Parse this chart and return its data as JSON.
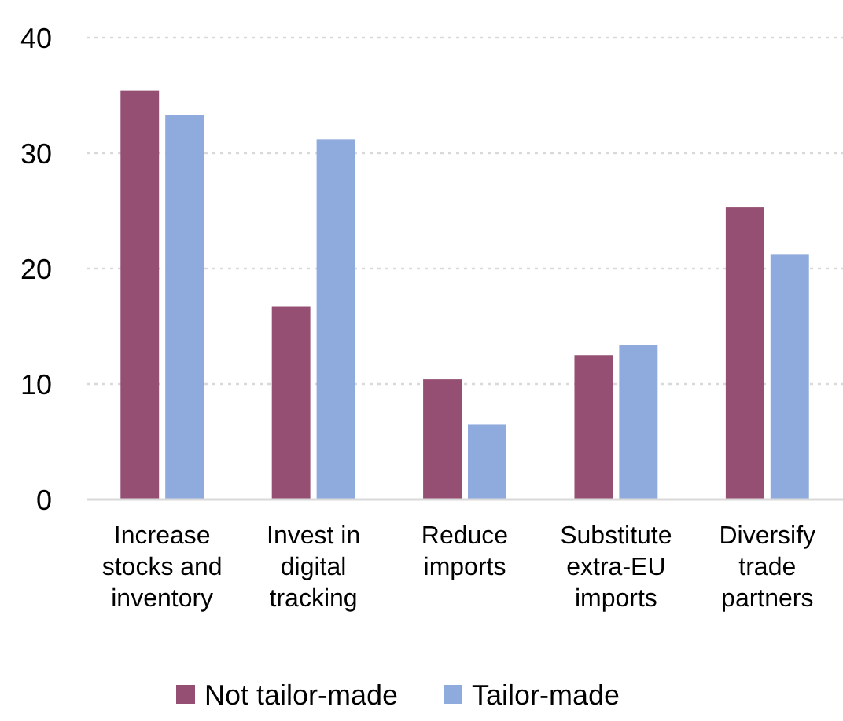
{
  "chart_data": {
    "type": "bar",
    "categories": [
      "Increase stocks and inventory",
      "Invest in digital tracking",
      "Reduce imports",
      "Substitute extra-EU imports",
      "Diversify trade partners"
    ],
    "series": [
      {
        "name": "Not tailor-made",
        "color": "#954f72",
        "values": [
          35.4,
          16.7,
          10.4,
          12.5,
          25.3
        ]
      },
      {
        "name": "Tailor-made",
        "color": "#8faadc",
        "values": [
          33.3,
          31.2,
          6.5,
          13.4,
          21.2
        ]
      }
    ],
    "ylim": [
      0,
      40
    ],
    "yticks": [
      0,
      10,
      20,
      30,
      40
    ],
    "grid": "y",
    "legend": "bottom"
  }
}
